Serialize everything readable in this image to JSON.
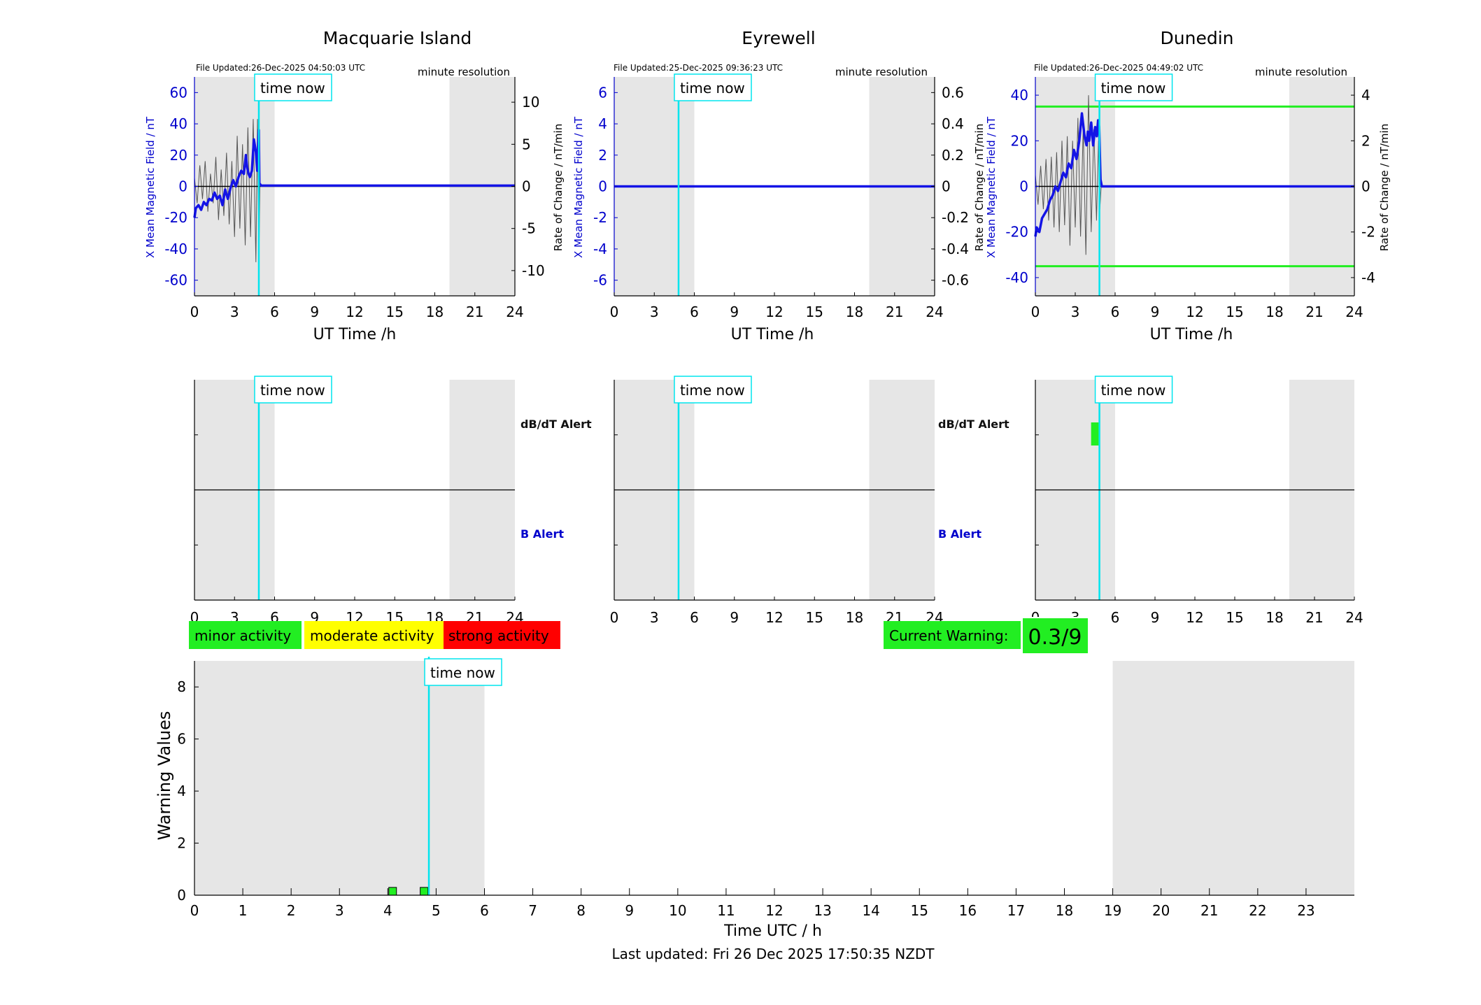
{
  "page": {
    "last_updated": "Last updated: Fri 26 Dec 2025 17:50:35 NZDT"
  },
  "colors": {
    "shade": "#e6e6e6",
    "time_now": "#00e5ee",
    "b_line": "#1414e6",
    "dbdt_line": "#555555",
    "threshold": "#22ee22",
    "minor": "#22ee22",
    "moderate": "#ffff00",
    "strong": "#ff0000",
    "axis_blue": "#0000cc"
  },
  "legend": {
    "minor": "minor activity",
    "moderate": "moderate activity",
    "strong": "strong activity"
  },
  "current_warning": {
    "label": "Current Warning:",
    "value": "0.3/9"
  },
  "stations": [
    {
      "name": "Macquarie Island",
      "file_updated": "File Updated:26-Dec-2025 04:50:03 UTC",
      "resolution": "minute resolution",
      "ylabel_left": "X Mean Magnetic Field / nT",
      "ylabel_right": "Rate of Change / nT/min",
      "xlabel": "UT Time /h",
      "time_now_label": "time now",
      "show_alert_labels": true,
      "dbdt_alert_label": "dB/dT Alert",
      "b_alert_label": "B Alert",
      "dbdt_alert_marks": []
    },
    {
      "name": "Eyrewell",
      "file_updated": "File Updated:25-Dec-2025 09:36:23 UTC",
      "resolution": "minute resolution",
      "ylabel_left": "X Mean Magnetic Field / nT",
      "ylabel_right": "Rate of Change / nT/min",
      "xlabel": "UT Time /h",
      "time_now_label": "time now",
      "show_alert_labels": true,
      "dbdt_alert_label": "dB/dT Alert",
      "b_alert_label": "B Alert",
      "dbdt_alert_marks": []
    },
    {
      "name": "Dunedin",
      "file_updated": "File Updated:26-Dec-2025 04:49:02 UTC",
      "resolution": "minute resolution",
      "ylabel_left": "X Mean Magnetic Field / nT",
      "ylabel_right": "Rate of Change / nT/min",
      "xlabel": "UT Time /h",
      "time_now_label": "time now",
      "show_alert_labels": false,
      "dbdt_alert_label": "",
      "b_alert_label": "",
      "dbdt_alert_marks": [
        4.35,
        4.6
      ]
    }
  ],
  "warning_panel": {
    "ylabel": "Warning Values",
    "xlabel": "Time UTC / h",
    "time_now_label": "time now"
  },
  "chart_data": [
    {
      "type": "line",
      "station": "Macquarie Island",
      "xlim": [
        0,
        24
      ],
      "x_ticks": [
        0,
        3,
        6,
        9,
        12,
        15,
        18,
        21,
        24
      ],
      "ylim_left": [
        -70,
        70
      ],
      "y_ticks_left": [
        -60,
        -40,
        -20,
        0,
        20,
        40,
        60
      ],
      "ylim_right": [
        -13,
        13
      ],
      "y_ticks_right": [
        -10,
        -5,
        0,
        5,
        10
      ],
      "shaded_hours": [
        [
          0,
          6
        ],
        [
          19.1,
          24
        ]
      ],
      "time_now": 4.82,
      "thresholds_left": [],
      "b_series": {
        "x": [
          0,
          0.1,
          0.3,
          0.5,
          0.7,
          0.9,
          1.1,
          1.3,
          1.5,
          1.7,
          1.9,
          2.1,
          2.3,
          2.5,
          2.7,
          2.9,
          3.1,
          3.3,
          3.5,
          3.7,
          3.85,
          3.95,
          4.05,
          4.15,
          4.3,
          4.45,
          4.6,
          4.7,
          4.78,
          4.82,
          4.86,
          5,
          8,
          12,
          16,
          20,
          24
        ],
        "y": [
          -20,
          -14,
          -12,
          -15,
          -10,
          -12,
          -8,
          -9,
          -4,
          -8,
          -6,
          -12,
          -2,
          -8,
          -1,
          4,
          0,
          6,
          10,
          8,
          20,
          12,
          8,
          6,
          10,
          30,
          22,
          10,
          30,
          36,
          2,
          0.5,
          0.5,
          0.5,
          0.5,
          0.5,
          0.5
        ]
      },
      "dbdt_series": {
        "x": [
          0,
          0.2,
          0.4,
          0.6,
          0.8,
          1,
          1.2,
          1.4,
          1.6,
          1.8,
          2,
          2.2,
          2.4,
          2.6,
          2.8,
          3,
          3.2,
          3.4,
          3.6,
          3.8,
          4,
          4.2,
          4.4,
          4.6,
          4.72,
          4.82,
          4.9
        ],
        "y": [
          1,
          -2,
          2.5,
          -1.5,
          3,
          -3,
          1.5,
          -2,
          3.5,
          -4,
          2,
          -3.5,
          4,
          -4.5,
          3,
          -6,
          6,
          -5,
          5,
          -7,
          7,
          -6,
          8,
          -9,
          8,
          -10,
          0
        ]
      }
    },
    {
      "type": "line",
      "station": "Eyrewell",
      "xlim": [
        0,
        24
      ],
      "x_ticks": [
        0,
        3,
        6,
        9,
        12,
        15,
        18,
        21,
        24
      ],
      "ylim_left": [
        -7,
        7
      ],
      "y_ticks_left": [
        -6,
        -4,
        -2,
        0,
        2,
        4,
        6
      ],
      "ylim_right": [
        -0.7,
        0.7
      ],
      "y_ticks_right": [
        -0.6,
        -0.4,
        -0.2,
        0,
        0.2,
        0.4,
        0.6
      ],
      "shaded_hours": [
        [
          0,
          6
        ],
        [
          19.1,
          24
        ]
      ],
      "time_now": 4.82,
      "thresholds_left": [],
      "b_series": {
        "x": [
          0,
          24
        ],
        "y": [
          0,
          0
        ]
      },
      "dbdt_series": {
        "x": [
          0,
          24
        ],
        "y": [
          0,
          0
        ]
      }
    },
    {
      "type": "line",
      "station": "Dunedin",
      "xlim": [
        0,
        24
      ],
      "x_ticks": [
        0,
        3,
        6,
        9,
        12,
        15,
        18,
        21,
        24
      ],
      "ylim_left": [
        -48,
        48
      ],
      "y_ticks_left": [
        -40,
        -20,
        0,
        20,
        40
      ],
      "ylim_right": [
        -4.8,
        4.8
      ],
      "y_ticks_right": [
        -4,
        -2,
        0,
        2,
        4
      ],
      "shaded_hours": [
        [
          0,
          6
        ],
        [
          19.1,
          24
        ]
      ],
      "time_now": 4.82,
      "thresholds_left": [
        35,
        -35
      ],
      "b_series": {
        "x": [
          0,
          0.1,
          0.3,
          0.5,
          0.7,
          0.9,
          1.1,
          1.3,
          1.5,
          1.7,
          1.9,
          2.1,
          2.3,
          2.5,
          2.7,
          2.9,
          3.1,
          3.3,
          3.5,
          3.7,
          3.85,
          3.95,
          4.05,
          4.2,
          4.35,
          4.5,
          4.62,
          4.72,
          4.8,
          4.9,
          5,
          8,
          12,
          16,
          20,
          24
        ],
        "y": [
          -22,
          -18,
          -20,
          -14,
          -12,
          -10,
          -6,
          -4,
          0,
          -2,
          2,
          6,
          4,
          10,
          8,
          16,
          12,
          20,
          32,
          22,
          18,
          24,
          20,
          28,
          18,
          26,
          22,
          29,
          26,
          3,
          0,
          0,
          0,
          0,
          0,
          0
        ]
      },
      "dbdt_series": {
        "x": [
          0,
          0.2,
          0.4,
          0.6,
          0.8,
          1,
          1.2,
          1.4,
          1.6,
          1.8,
          2,
          2.2,
          2.4,
          2.6,
          2.8,
          3,
          3.2,
          3.4,
          3.6,
          3.8,
          4,
          4.2,
          4.4,
          4.6,
          4.75,
          4.85,
          4.95
        ],
        "y": [
          0.5,
          -0.8,
          0.9,
          -1,
          1.2,
          -1.5,
          1.3,
          -1.8,
          1.5,
          -2,
          2,
          -1.7,
          2.2,
          -2.6,
          2,
          -1.8,
          3,
          -2.2,
          2.6,
          -3,
          4,
          -2,
          2.5,
          -1.5,
          2,
          -1,
          0
        ]
      }
    },
    {
      "type": "bar",
      "station": "Warning",
      "xlim": [
        0,
        24
      ],
      "x_ticks": [
        0,
        1,
        2,
        3,
        4,
        5,
        6,
        7,
        8,
        9,
        10,
        11,
        12,
        13,
        14,
        15,
        16,
        17,
        18,
        19,
        20,
        21,
        22,
        23
      ],
      "ylim": [
        0,
        9
      ],
      "y_ticks": [
        0,
        2,
        4,
        6,
        8
      ],
      "shaded_hours": [
        [
          0,
          6
        ],
        [
          19,
          24
        ]
      ],
      "time_now": 4.85,
      "bars": [
        {
          "x": 4.1,
          "value": 0.3,
          "level": "minor"
        },
        {
          "x": 4.75,
          "value": 0.3,
          "level": "minor"
        }
      ]
    }
  ]
}
